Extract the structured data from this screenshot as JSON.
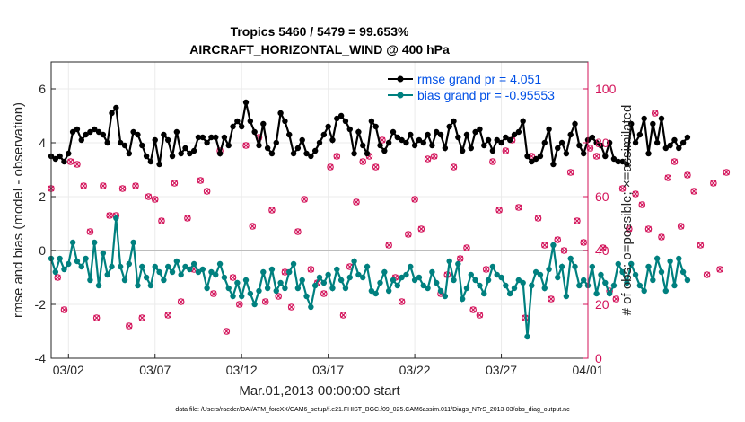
{
  "chart_data": {
    "type": "line",
    "title_line1": "Tropics 5460 / 5479 = 99.653%",
    "title_line2": "AIRCRAFT_HORIZONTAL_WIND @ 400 hPa",
    "xlabel": "Mar.01,2013 00:00:00 start",
    "ylabel_left": "rmse and bias (model - observation)",
    "ylabel_right": "# of obs: o=possible; ×=assimilated",
    "footer": "data file: /Users/raeder/DAI/ATM_forcXX/CAM6_setup/f.e21.FHIST_BGC.f09_025.CAM6assim.011/Diags_NTrS_2013-03/obs_diag_output.nc",
    "x_range_days": [
      0,
      31
    ],
    "x_ticks": [
      {
        "day": 1.0,
        "label": "03/02"
      },
      {
        "day": 6.0,
        "label": "03/07"
      },
      {
        "day": 11.0,
        "label": "03/12"
      },
      {
        "day": 16.0,
        "label": "03/17"
      },
      {
        "day": 21.0,
        "label": "03/22"
      },
      {
        "day": 26.0,
        "label": "03/27"
      },
      {
        "day": 31.0,
        "label": "04/01"
      }
    ],
    "ylim_left": [
      -4,
      7
    ],
    "yticks_left": [
      -4,
      -2,
      0,
      2,
      4,
      6
    ],
    "ylim_right": [
      0,
      110
    ],
    "yticks_right": [
      0,
      20,
      40,
      60,
      80,
      100
    ],
    "colors": {
      "rmse": "#000000",
      "bias": "#00807f",
      "obs": "#d3135a",
      "right_axis": "#d3135a",
      "zero_line": "#bdbdbd",
      "legend_text": "#0050e6"
    },
    "series": [
      {
        "name": "rmse grand pr = 4.051",
        "axis": "left",
        "start_day": 0,
        "step_days": 0.25,
        "values": [
          3.5,
          3.4,
          3.5,
          3.3,
          3.6,
          4.4,
          4.5,
          4.1,
          4.3,
          4.4,
          4.5,
          4.4,
          4.3,
          4.0,
          5.1,
          5.3,
          4.0,
          3.9,
          3.6,
          4.4,
          4.3,
          3.9,
          3.5,
          3.3,
          4.1,
          3.2,
          4.3,
          4.1,
          3.5,
          4.4,
          3.6,
          3.8,
          3.6,
          3.7,
          4.2,
          4.2,
          4.0,
          4.2,
          4.2,
          3.6,
          4.2,
          3.9,
          4.6,
          4.8,
          4.6,
          5.5,
          4.8,
          4.4,
          3.9,
          4.7,
          3.8,
          3.6,
          4.0,
          5.1,
          4.8,
          4.3,
          3.6,
          3.8,
          4.1,
          3.6,
          3.5,
          3.7,
          4.0,
          4.3,
          4.6,
          4.1,
          4.9,
          5.0,
          4.8,
          4.5,
          3.6,
          4.4,
          3.9,
          3.6,
          4.8,
          4.6,
          3.9,
          3.7,
          4.0,
          4.4,
          4.2,
          4.1,
          4.0,
          4.3,
          3.9,
          4.1,
          4.0,
          4.3,
          3.9,
          4.4,
          4.3,
          3.8,
          4.6,
          4.8,
          4.2,
          3.7,
          4.3,
          3.8,
          4.4,
          4.5,
          3.9,
          4.1,
          3.7,
          4.1,
          4.0,
          4.2,
          4.1,
          4.3,
          4.4,
          4.8,
          3.5,
          3.3,
          3.4,
          3.5,
          4.0,
          4.5,
          3.2,
          3.8,
          4.0,
          3.6,
          4.3,
          4.7,
          3.9,
          3.6,
          4.1,
          4.2,
          4.0,
          3.9,
          3.5,
          4.0,
          3.4,
          3.3,
          3.3,
          3.2,
          4.7,
          4.0,
          4.3,
          4.9,
          3.6,
          4.7,
          4.0,
          4.9,
          3.8,
          3.9,
          4.1,
          3.8,
          4.0,
          4.2
        ]
      },
      {
        "name": "bias grand pr = -0.95553",
        "axis": "left",
        "start_day": 0,
        "step_days": 0.25,
        "values": [
          -0.3,
          -0.8,
          -0.3,
          -0.7,
          -0.5,
          0.3,
          -0.4,
          -0.6,
          -0.3,
          -1.1,
          0.3,
          -1.3,
          -0.1,
          -0.9,
          -0.6,
          1.2,
          -0.6,
          -1.1,
          -0.5,
          0.3,
          -1.3,
          -0.6,
          -1.0,
          -1.3,
          -0.6,
          -0.8,
          -1.1,
          -0.6,
          -0.8,
          -0.4,
          -0.9,
          -0.6,
          -0.7,
          -0.5,
          -0.8,
          -0.7,
          -1.4,
          -0.8,
          -0.9,
          -0.5,
          -1.0,
          -1.4,
          -1.7,
          -1.2,
          -1.7,
          -1.1,
          -1.6,
          -2.0,
          -1.5,
          -0.8,
          -1.4,
          -0.7,
          -1.5,
          -1.2,
          -1.4,
          -0.8,
          -0.5,
          -1.4,
          -1.1,
          -1.7,
          -2.1,
          -1.3,
          -1.0,
          -1.2,
          -0.9,
          -1.4,
          -0.7,
          -1.1,
          -1.4,
          -1.0,
          -0.4,
          -0.9,
          -1.0,
          -0.6,
          -1.5,
          -1.6,
          -1.2,
          -0.8,
          -1.5,
          -1.1,
          -1.3,
          -1.0,
          -0.9,
          -0.6,
          -1.1,
          -1.0,
          -1.3,
          -1.4,
          -0.8,
          -1.2,
          -1.5,
          -1.7,
          -0.4,
          -1.1,
          -0.5,
          -1.8,
          -1.4,
          -0.9,
          -1.1,
          -1.3,
          -1.6,
          -1.1,
          -0.6,
          -0.9,
          -1.0,
          -1.3,
          -1.6,
          -1.4,
          -1.1,
          -1.2,
          -3.2,
          -1.3,
          -0.8,
          -0.9,
          -1.4,
          -0.7,
          0.2,
          -1.0,
          -0.6,
          -1.7,
          -0.3,
          -0.6,
          -1.3,
          -1.1,
          -1.3,
          -0.6,
          -1.6,
          -0.9,
          -1.2,
          -1.6,
          -1.3,
          -0.5,
          -0.8,
          -1.2,
          -0.5,
          -0.9,
          -1.3,
          -1.5,
          -0.6,
          -1.1,
          -0.3,
          -0.8,
          -1.5,
          -0.4,
          -1.3,
          -0.3,
          -0.8,
          -1.1
        ]
      },
      {
        "name": "obs possible",
        "axis": "right",
        "start_day": 0,
        "step_days": 0.375,
        "values": [
          63,
          30,
          18,
          73,
          72,
          64,
          47,
          15,
          64,
          53,
          53,
          63,
          12,
          64,
          15,
          60,
          59,
          51,
          16,
          65,
          21,
          52,
          33,
          66,
          62,
          24,
          77,
          10,
          30,
          20,
          79,
          49,
          82,
          21,
          55,
          23,
          32,
          19,
          47,
          59,
          33,
          28,
          24,
          71,
          75,
          16,
          34,
          58,
          73,
          75,
          71,
          81,
          42,
          30,
          21,
          46,
          59,
          48,
          74,
          75,
          24,
          31,
          71,
          37,
          41,
          18,
          16,
          33,
          73,
          55,
          77,
          81,
          56,
          15,
          75,
          52,
          42,
          22,
          44,
          40,
          69,
          51,
          43,
          78,
          75,
          41,
          25,
          22,
          63,
          48,
          61,
          57,
          48,
          91,
          45,
          67,
          73,
          49,
          68,
          62,
          42,
          31,
          65,
          33,
          69
        ]
      }
    ]
  }
}
